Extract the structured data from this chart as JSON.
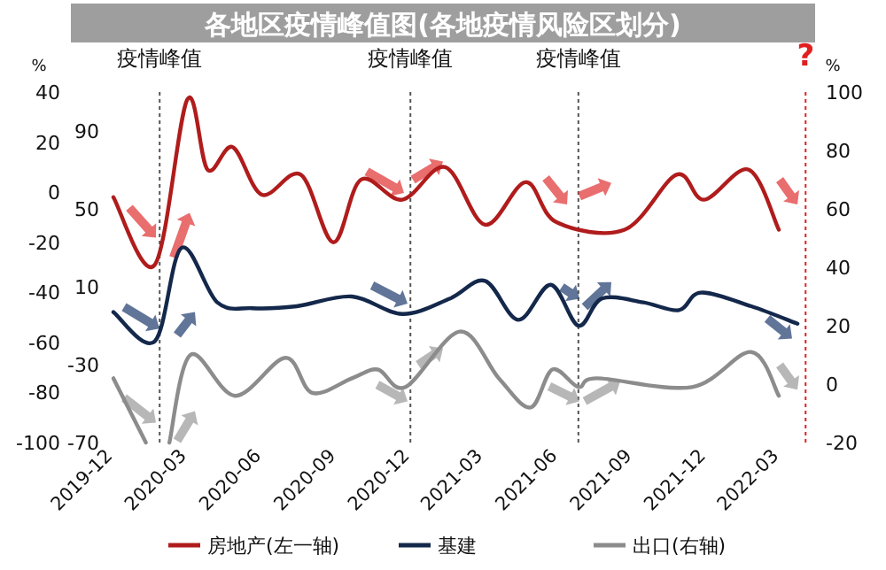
{
  "chart_data": {
    "type": "line",
    "title": "各地区疫情峰值图(各地疫情风险区划分)",
    "ylabel": "%",
    "y2label": "%",
    "xlim": [
      "2019-12-01",
      "2022-04-05"
    ],
    "xticks": [
      "2019-12",
      "2020-03",
      "2020-06",
      "2020-09",
      "2020-12",
      "2021-03",
      "2021-06",
      "2021-09",
      "2021-12",
      "2022-03"
    ],
    "ylim": [
      -100,
      40
    ],
    "yticks": [
      -100,
      -80,
      -60,
      -40,
      -20,
      0,
      20,
      40
    ],
    "y2lim": [
      -20,
      100
    ],
    "y2ticks": [
      -20,
      0,
      20,
      40,
      60,
      80,
      100
    ],
    "y3lim": [
      -70,
      110
    ],
    "y3ticks": [
      -70,
      -30,
      10,
      50,
      90
    ],
    "grid": false,
    "legend": "bottom",
    "marker": "none",
    "line_style": "solid",
    "series": [
      {
        "name": "房地产(左一轴)",
        "color": "#b01c1c",
        "x": [
          "2019-12-01",
          "2020-01-21",
          "2020-03-01",
          "2020-03-26",
          "2020-04-26",
          "2020-06-01",
          "2020-07-19",
          "2020-08-28",
          "2020-10-01",
          "2020-11-21",
          "2021-01-13",
          "2021-03-03",
          "2021-04-22",
          "2021-05-30",
          "2021-08-22",
          "2021-10-25",
          "2021-11-28",
          "2022-01-22",
          "2022-02-28"
        ],
        "values": [
          -2,
          -29,
          37,
          9,
          18,
          -1,
          7,
          -20,
          5,
          -3,
          10,
          -13,
          4,
          -12,
          -15,
          7,
          -3,
          9,
          -15
        ]
      },
      {
        "name": "基建",
        "color": "#14284b",
        "axis": "y3",
        "x": [
          "2019-12-01",
          "2020-01-21",
          "2020-02-23",
          "2020-04-07",
          "2020-05-20",
          "2020-07-14",
          "2020-09-20",
          "2020-11-21",
          "2021-01-19",
          "2021-03-03",
          "2021-04-13",
          "2021-05-23",
          "2021-06-26",
          "2021-07-25",
          "2021-09-14",
          "2021-10-28",
          "2021-11-24",
          "2022-01-25",
          "2022-03-23"
        ],
        "values": [
          -3,
          -18,
          30,
          2,
          -1,
          0,
          5,
          -4,
          4,
          13,
          -7,
          11,
          -10,
          4,
          2,
          -2,
          7,
          0,
          -9
        ]
      },
      {
        "name": "出口(右轴)",
        "color": "#8c8c8c",
        "axis": "y2",
        "x": [
          "2019-12-01",
          "2020-01-10",
          "2020-02-01",
          "2020-02-08",
          "2020-03-05",
          "2020-04-29",
          "2020-06-30",
          "2020-08-02",
          "2020-09-20",
          "2020-10-22",
          "2020-11-25",
          "2021-01-31",
          "2021-03-20",
          "2021-04-28",
          "2021-05-25",
          "2021-06-26",
          "2021-07-19",
          "2021-11-13",
          "2022-01-25",
          "2022-02-28"
        ],
        "values": [
          2,
          -20,
          null,
          -20,
          10,
          -4,
          9,
          -3,
          2,
          5,
          -1,
          18,
          2,
          -8,
          5,
          -1,
          2,
          -1,
          11,
          -4
        ]
      }
    ],
    "ref_lines": [
      {
        "axis": "x",
        "value": "2020-01-27",
        "label": "疫情峰值",
        "color": "#555555",
        "line_style": "dotted"
      },
      {
        "axis": "x",
        "value": "2020-12-01",
        "label": "疫情峰值",
        "color": "#555555",
        "line_style": "dotted"
      },
      {
        "axis": "x",
        "value": "2021-06-26",
        "label": "疫情峰值",
        "color": "#555555",
        "line_style": "dotted"
      },
      {
        "axis": "x",
        "value": "2022-04-02",
        "label": "?",
        "color": "#e02020",
        "line_style": "dotted"
      }
    ]
  }
}
